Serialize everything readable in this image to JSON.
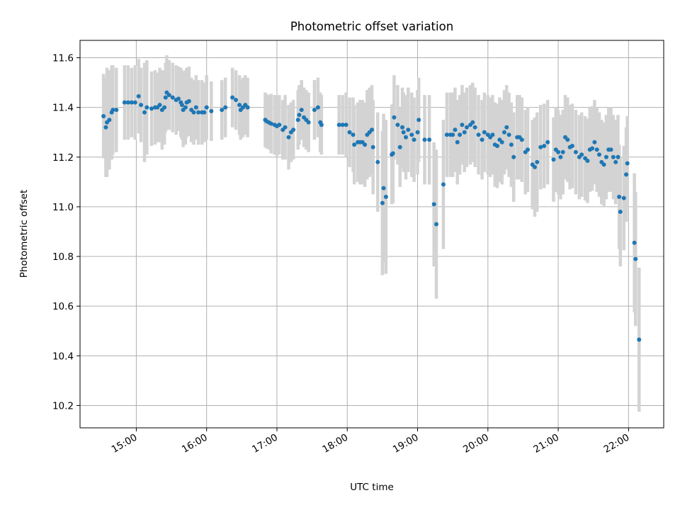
{
  "colors": {
    "marker": "#1f77b4",
    "errorbar": "#d3d3d3",
    "grid": "#b0b0b0",
    "axes": "#000000",
    "background": "#ffffff"
  },
  "chart_data": {
    "type": "scatter",
    "title": "Photometric offset variation",
    "xlabel": "UTC time",
    "ylabel": "Photometric offset",
    "xlim": [
      "14:12",
      "22:30"
    ],
    "ylim": [
      10.11,
      11.67
    ],
    "grid": true,
    "x_ticks": [
      "15:00",
      "16:00",
      "17:00",
      "18:00",
      "19:00",
      "20:00",
      "21:00",
      "22:00"
    ],
    "y_ticks": [
      "10.2",
      "10.4",
      "10.6",
      "10.8",
      "11.0",
      "11.2",
      "11.4",
      "11.6"
    ],
    "series": [
      {
        "marker": "point",
        "error_bars": "vertical",
        "points": [
          {
            "x": "14:32",
            "y": 11.365,
            "err": 0.17
          },
          {
            "x": "14:34",
            "y": 11.32,
            "err": 0.2
          },
          {
            "x": "14:35",
            "y": 11.34,
            "err": 0.22
          },
          {
            "x": "14:37",
            "y": 11.35,
            "err": 0.2
          },
          {
            "x": "14:39",
            "y": 11.38,
            "err": 0.19
          },
          {
            "x": "14:40",
            "y": 11.39,
            "err": 0.18
          },
          {
            "x": "14:43",
            "y": 11.39,
            "err": 0.17
          },
          {
            "x": "14:50",
            "y": 11.42,
            "err": 0.15
          },
          {
            "x": "14:53",
            "y": 11.42,
            "err": 0.15
          },
          {
            "x": "14:56",
            "y": 11.42,
            "err": 0.14
          },
          {
            "x": "14:59",
            "y": 11.42,
            "err": 0.15
          },
          {
            "x": "15:02",
            "y": 11.445,
            "err": 0.15
          },
          {
            "x": "15:04",
            "y": 11.41,
            "err": 0.15
          },
          {
            "x": "15:07",
            "y": 11.38,
            "err": 0.2
          },
          {
            "x": "15:09",
            "y": 11.4,
            "err": 0.19
          },
          {
            "x": "15:13",
            "y": 11.395,
            "err": 0.15
          },
          {
            "x": "15:16",
            "y": 11.4,
            "err": 0.15
          },
          {
            "x": "15:18",
            "y": 11.4,
            "err": 0.14
          },
          {
            "x": "15:20",
            "y": 11.41,
            "err": 0.15
          },
          {
            "x": "15:22",
            "y": 11.39,
            "err": 0.16
          },
          {
            "x": "15:24",
            "y": 11.4,
            "err": 0.15
          },
          {
            "x": "15:25",
            "y": 11.44,
            "err": 0.14
          },
          {
            "x": "15:26",
            "y": 11.46,
            "err": 0.15
          },
          {
            "x": "15:28",
            "y": 11.45,
            "err": 0.14
          },
          {
            "x": "15:31",
            "y": 11.44,
            "err": 0.14
          },
          {
            "x": "15:34",
            "y": 11.43,
            "err": 0.14
          },
          {
            "x": "15:36",
            "y": 11.435,
            "err": 0.13
          },
          {
            "x": "15:38",
            "y": 11.42,
            "err": 0.14
          },
          {
            "x": "15:39",
            "y": 11.41,
            "err": 0.14
          },
          {
            "x": "15:40",
            "y": 11.39,
            "err": 0.15
          },
          {
            "x": "15:42",
            "y": 11.4,
            "err": 0.15
          },
          {
            "x": "15:43",
            "y": 11.42,
            "err": 0.14
          },
          {
            "x": "15:45",
            "y": 11.425,
            "err": 0.14
          },
          {
            "x": "15:47",
            "y": 11.39,
            "err": 0.13
          },
          {
            "x": "15:49",
            "y": 11.38,
            "err": 0.13
          },
          {
            "x": "15:51",
            "y": 11.4,
            "err": 0.13
          },
          {
            "x": "15:53",
            "y": 11.38,
            "err": 0.13
          },
          {
            "x": "15:56",
            "y": 11.38,
            "err": 0.13
          },
          {
            "x": "15:58",
            "y": 11.38,
            "err": 0.12
          },
          {
            "x": "16:00",
            "y": 11.4,
            "err": 0.13
          },
          {
            "x": "16:04",
            "y": 11.385,
            "err": 0.12
          },
          {
            "x": "16:13",
            "y": 11.39,
            "err": 0.12
          },
          {
            "x": "16:16",
            "y": 11.4,
            "err": 0.12
          },
          {
            "x": "16:22",
            "y": 11.44,
            "err": 0.12
          },
          {
            "x": "16:25",
            "y": 11.43,
            "err": 0.12
          },
          {
            "x": "16:28",
            "y": 11.41,
            "err": 0.12
          },
          {
            "x": "16:29",
            "y": 11.39,
            "err": 0.12
          },
          {
            "x": "16:31",
            "y": 11.4,
            "err": 0.12
          },
          {
            "x": "16:33",
            "y": 11.41,
            "err": 0.12
          },
          {
            "x": "16:35",
            "y": 11.4,
            "err": 0.12
          },
          {
            "x": "16:50",
            "y": 11.35,
            "err": 0.11
          },
          {
            "x": "16:51",
            "y": 11.345,
            "err": 0.11
          },
          {
            "x": "16:53",
            "y": 11.34,
            "err": 0.11
          },
          {
            "x": "16:55",
            "y": 11.335,
            "err": 0.12
          },
          {
            "x": "16:58",
            "y": 11.33,
            "err": 0.12
          },
          {
            "x": "17:00",
            "y": 11.325,
            "err": 0.12
          },
          {
            "x": "17:02",
            "y": 11.33,
            "err": 0.12
          },
          {
            "x": "17:05",
            "y": 11.31,
            "err": 0.12
          },
          {
            "x": "17:07",
            "y": 11.32,
            "err": 0.13
          },
          {
            "x": "17:10",
            "y": 11.28,
            "err": 0.13
          },
          {
            "x": "17:12",
            "y": 11.3,
            "err": 0.12
          },
          {
            "x": "17:14",
            "y": 11.31,
            "err": 0.12
          },
          {
            "x": "17:18",
            "y": 11.35,
            "err": 0.12
          },
          {
            "x": "17:19",
            "y": 11.37,
            "err": 0.12
          },
          {
            "x": "17:21",
            "y": 11.39,
            "err": 0.12
          },
          {
            "x": "17:23",
            "y": 11.36,
            "err": 0.12
          },
          {
            "x": "17:25",
            "y": 11.35,
            "err": 0.12
          },
          {
            "x": "17:27",
            "y": 11.34,
            "err": 0.12
          },
          {
            "x": "17:32",
            "y": 11.39,
            "err": 0.12
          },
          {
            "x": "17:35",
            "y": 11.4,
            "err": 0.12
          },
          {
            "x": "17:37",
            "y": 11.34,
            "err": 0.12
          },
          {
            "x": "17:38",
            "y": 11.33,
            "err": 0.12
          },
          {
            "x": "17:53",
            "y": 11.33,
            "err": 0.12
          },
          {
            "x": "17:56",
            "y": 11.33,
            "err": 0.12
          },
          {
            "x": "17:59",
            "y": 11.33,
            "err": 0.13
          },
          {
            "x": "18:02",
            "y": 11.3,
            "err": 0.14
          },
          {
            "x": "18:05",
            "y": 11.29,
            "err": 0.15
          },
          {
            "x": "18:06",
            "y": 11.25,
            "err": 0.16
          },
          {
            "x": "18:09",
            "y": 11.26,
            "err": 0.16
          },
          {
            "x": "18:11",
            "y": 11.26,
            "err": 0.17
          },
          {
            "x": "18:13",
            "y": 11.26,
            "err": 0.17
          },
          {
            "x": "18:15",
            "y": 11.25,
            "err": 0.17
          },
          {
            "x": "18:17",
            "y": 11.29,
            "err": 0.18
          },
          {
            "x": "18:19",
            "y": 11.3,
            "err": 0.18
          },
          {
            "x": "18:21",
            "y": 11.31,
            "err": 0.18
          },
          {
            "x": "18:22",
            "y": 11.24,
            "err": 0.19
          },
          {
            "x": "18:26",
            "y": 11.18,
            "err": 0.2
          },
          {
            "x": "18:30",
            "y": 11.015,
            "err": 0.29
          },
          {
            "x": "18:31",
            "y": 11.075,
            "err": 0.3
          },
          {
            "x": "18:33",
            "y": 11.04,
            "err": 0.31
          },
          {
            "x": "18:38",
            "y": 11.21,
            "err": 0.2
          },
          {
            "x": "18:39",
            "y": 11.215,
            "err": 0.2
          },
          {
            "x": "18:40",
            "y": 11.36,
            "err": 0.17
          },
          {
            "x": "18:43",
            "y": 11.33,
            "err": 0.16
          },
          {
            "x": "18:45",
            "y": 11.24,
            "err": 0.16
          },
          {
            "x": "18:47",
            "y": 11.32,
            "err": 0.16
          },
          {
            "x": "18:48",
            "y": 11.3,
            "err": 0.16
          },
          {
            "x": "18:50",
            "y": 11.28,
            "err": 0.17
          },
          {
            "x": "18:52",
            "y": 11.31,
            "err": 0.17
          },
          {
            "x": "18:55",
            "y": 11.29,
            "err": 0.17
          },
          {
            "x": "18:57",
            "y": 11.27,
            "err": 0.17
          },
          {
            "x": "19:00",
            "y": 11.3,
            "err": 0.17
          },
          {
            "x": "19:01",
            "y": 11.35,
            "err": 0.17
          },
          {
            "x": "19:06",
            "y": 11.27,
            "err": 0.18
          },
          {
            "x": "19:10",
            "y": 11.27,
            "err": 0.18
          },
          {
            "x": "19:14",
            "y": 11.01,
            "err": 0.25
          },
          {
            "x": "19:16",
            "y": 10.93,
            "err": 0.3
          },
          {
            "x": "19:22",
            "y": 11.09,
            "err": 0.26
          },
          {
            "x": "19:25",
            "y": 11.29,
            "err": 0.17
          },
          {
            "x": "19:28",
            "y": 11.29,
            "err": 0.17
          },
          {
            "x": "19:30",
            "y": 11.29,
            "err": 0.17
          },
          {
            "x": "19:32",
            "y": 11.31,
            "err": 0.17
          },
          {
            "x": "19:34",
            "y": 11.26,
            "err": 0.17
          },
          {
            "x": "19:36",
            "y": 11.29,
            "err": 0.16
          },
          {
            "x": "19:38",
            "y": 11.33,
            "err": 0.16
          },
          {
            "x": "19:40",
            "y": 11.3,
            "err": 0.16
          },
          {
            "x": "19:42",
            "y": 11.32,
            "err": 0.16
          },
          {
            "x": "19:45",
            "y": 11.33,
            "err": 0.16
          },
          {
            "x": "19:47",
            "y": 11.34,
            "err": 0.16
          },
          {
            "x": "19:49",
            "y": 11.32,
            "err": 0.16
          },
          {
            "x": "19:52",
            "y": 11.29,
            "err": 0.16
          },
          {
            "x": "19:55",
            "y": 11.27,
            "err": 0.16
          },
          {
            "x": "19:57",
            "y": 11.3,
            "err": 0.16
          },
          {
            "x": "20:00",
            "y": 11.29,
            "err": 0.16
          },
          {
            "x": "20:02",
            "y": 11.28,
            "err": 0.16
          },
          {
            "x": "20:04",
            "y": 11.29,
            "err": 0.16
          },
          {
            "x": "20:06",
            "y": 11.25,
            "err": 0.17
          },
          {
            "x": "20:08",
            "y": 11.245,
            "err": 0.17
          },
          {
            "x": "20:10",
            "y": 11.27,
            "err": 0.17
          },
          {
            "x": "20:12",
            "y": 11.26,
            "err": 0.17
          },
          {
            "x": "20:14",
            "y": 11.3,
            "err": 0.17
          },
          {
            "x": "20:16",
            "y": 11.32,
            "err": 0.17
          },
          {
            "x": "20:18",
            "y": 11.29,
            "err": 0.17
          },
          {
            "x": "20:20",
            "y": 11.25,
            "err": 0.17
          },
          {
            "x": "20:22",
            "y": 11.2,
            "err": 0.18
          },
          {
            "x": "20:25",
            "y": 11.28,
            "err": 0.17
          },
          {
            "x": "20:27",
            "y": 11.28,
            "err": 0.17
          },
          {
            "x": "20:29",
            "y": 11.27,
            "err": 0.17
          },
          {
            "x": "20:32",
            "y": 11.22,
            "err": 0.17
          },
          {
            "x": "20:34",
            "y": 11.23,
            "err": 0.17
          },
          {
            "x": "20:38",
            "y": 11.17,
            "err": 0.18
          },
          {
            "x": "20:40",
            "y": 11.16,
            "err": 0.2
          },
          {
            "x": "20:42",
            "y": 11.18,
            "err": 0.2
          },
          {
            "x": "20:45",
            "y": 11.24,
            "err": 0.17
          },
          {
            "x": "20:48",
            "y": 11.245,
            "err": 0.17
          },
          {
            "x": "20:51",
            "y": 11.26,
            "err": 0.17
          },
          {
            "x": "20:56",
            "y": 11.19,
            "err": 0.17
          },
          {
            "x": "20:58",
            "y": 11.23,
            "err": 0.17
          },
          {
            "x": "21:00",
            "y": 11.22,
            "err": 0.17
          },
          {
            "x": "21:02",
            "y": 11.2,
            "err": 0.17
          },
          {
            "x": "21:04",
            "y": 11.22,
            "err": 0.17
          },
          {
            "x": "21:06",
            "y": 11.28,
            "err": 0.17
          },
          {
            "x": "21:08",
            "y": 11.27,
            "err": 0.17
          },
          {
            "x": "21:10",
            "y": 11.24,
            "err": 0.17
          },
          {
            "x": "21:12",
            "y": 11.245,
            "err": 0.17
          },
          {
            "x": "21:15",
            "y": 11.22,
            "err": 0.17
          },
          {
            "x": "21:18",
            "y": 11.2,
            "err": 0.17
          },
          {
            "x": "21:20",
            "y": 11.21,
            "err": 0.17
          },
          {
            "x": "21:23",
            "y": 11.195,
            "err": 0.17
          },
          {
            "x": "21:25",
            "y": 11.185,
            "err": 0.17
          },
          {
            "x": "21:27",
            "y": 11.23,
            "err": 0.17
          },
          {
            "x": "21:29",
            "y": 11.235,
            "err": 0.17
          },
          {
            "x": "21:31",
            "y": 11.26,
            "err": 0.17
          },
          {
            "x": "21:33",
            "y": 11.23,
            "err": 0.17
          },
          {
            "x": "21:35",
            "y": 11.21,
            "err": 0.17
          },
          {
            "x": "21:37",
            "y": 11.18,
            "err": 0.17
          },
          {
            "x": "21:39",
            "y": 11.17,
            "err": 0.17
          },
          {
            "x": "21:41",
            "y": 11.2,
            "err": 0.17
          },
          {
            "x": "21:43",
            "y": 11.23,
            "err": 0.17
          },
          {
            "x": "21:45",
            "y": 11.23,
            "err": 0.17
          },
          {
            "x": "21:47",
            "y": 11.2,
            "err": 0.17
          },
          {
            "x": "21:49",
            "y": 11.18,
            "err": 0.17
          },
          {
            "x": "21:51",
            "y": 11.2,
            "err": 0.17
          },
          {
            "x": "21:52",
            "y": 11.04,
            "err": 0.21
          },
          {
            "x": "21:53",
            "y": 10.98,
            "err": 0.22
          },
          {
            "x": "21:56",
            "y": 11.035,
            "err": 0.21
          },
          {
            "x": "21:58",
            "y": 11.13,
            "err": 0.19
          },
          {
            "x": "21:59",
            "y": 11.175,
            "err": 0.19
          },
          {
            "x": "22:05",
            "y": 10.855,
            "err": 0.28
          },
          {
            "x": "22:06",
            "y": 10.79,
            "err": 0.27
          },
          {
            "x": "22:09",
            "y": 10.465,
            "err": 0.29
          }
        ]
      }
    ]
  }
}
